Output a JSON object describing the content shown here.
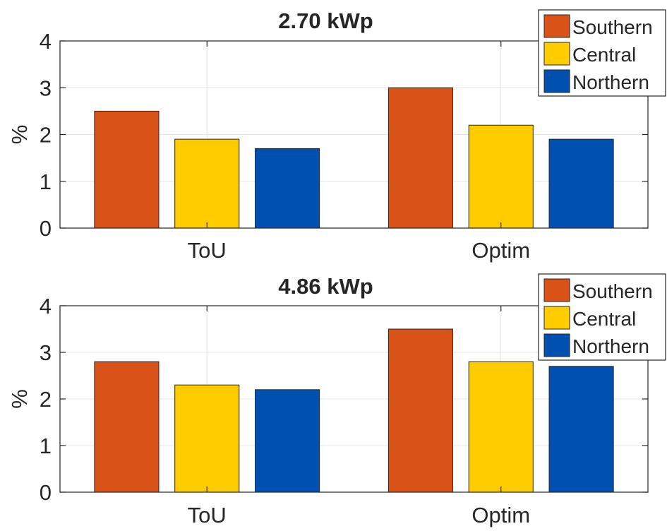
{
  "chart_data": [
    {
      "type": "bar",
      "title": "2.70 kWp",
      "xlabel": "",
      "ylabel": "%",
      "ylim": [
        0,
        4
      ],
      "yticks": [
        0,
        1,
        2,
        3,
        4
      ],
      "grid": true,
      "legend_position": "top-right",
      "categories": [
        "ToU",
        "Optim"
      ],
      "series": [
        {
          "name": "Southern",
          "color": "#D95319",
          "values": [
            2.5,
            3.0
          ]
        },
        {
          "name": "Central",
          "color": "#FFCC00",
          "values": [
            1.9,
            2.2
          ]
        },
        {
          "name": "Northern",
          "color": "#0050B0",
          "values": [
            1.7,
            1.9
          ]
        }
      ]
    },
    {
      "type": "bar",
      "title": "4.86 kWp",
      "xlabel": "",
      "ylabel": "%",
      "ylim": [
        0,
        4
      ],
      "yticks": [
        0,
        1,
        2,
        3,
        4
      ],
      "grid": true,
      "legend_position": "top-right",
      "categories": [
        "ToU",
        "Optim"
      ],
      "series": [
        {
          "name": "Southern",
          "color": "#D95319",
          "values": [
            2.8,
            3.5
          ]
        },
        {
          "name": "Central",
          "color": "#FFCC00",
          "values": [
            2.3,
            2.8
          ]
        },
        {
          "name": "Northern",
          "color": "#0050B0",
          "values": [
            2.2,
            2.7
          ]
        }
      ]
    }
  ]
}
